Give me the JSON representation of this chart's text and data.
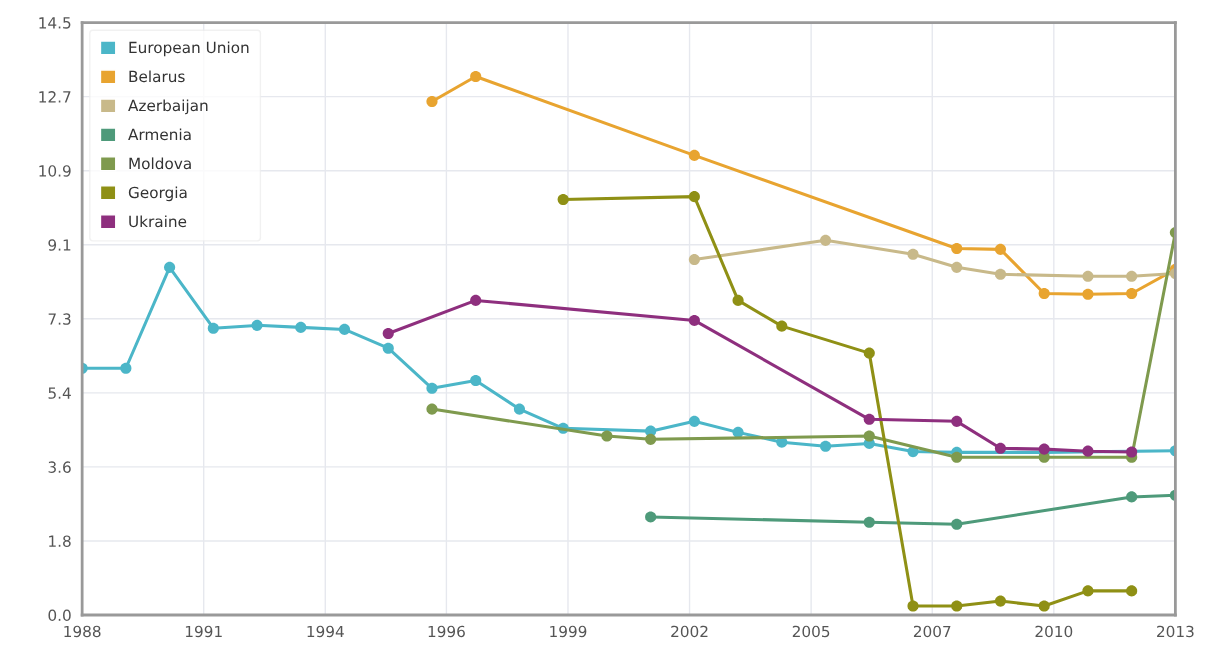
{
  "chart_data": {
    "type": "line",
    "marker": "circle",
    "line_style": "solid",
    "grid": true,
    "legend": "top left",
    "xlim": [
      1988,
      2013
    ],
    "xticks": [
      {
        "value": 1988,
        "label": "1988"
      },
      {
        "value": 1990.78,
        "label": "1991"
      },
      {
        "value": 1993.56,
        "label": "1994"
      },
      {
        "value": 1996.33,
        "label": "1996"
      },
      {
        "value": 1999.11,
        "label": "1999"
      },
      {
        "value": 2001.89,
        "label": "2002"
      },
      {
        "value": 2004.67,
        "label": "2005"
      },
      {
        "value": 2007.44,
        "label": "2007"
      },
      {
        "value": 2010.22,
        "label": "2010"
      },
      {
        "value": 2013,
        "label": "2013"
      }
    ],
    "ylim": [
      0,
      14.5
    ],
    "yticks": [
      {
        "value": 0,
        "label": "0.0"
      },
      {
        "value": 1.8125,
        "label": "1.8"
      },
      {
        "value": 3.625,
        "label": "3.6"
      },
      {
        "value": 5.4375,
        "label": "5.4"
      },
      {
        "value": 7.25,
        "label": "7.3"
      },
      {
        "value": 9.0625,
        "label": "9.1"
      },
      {
        "value": 10.875,
        "label": "10.9"
      },
      {
        "value": 12.6875,
        "label": "12.7"
      },
      {
        "value": 14.5,
        "label": "14.5"
      }
    ],
    "series": [
      {
        "name": "European Union",
        "color": "#4bb6c8",
        "x": [
          1988,
          1989,
          1990,
          1991,
          1992,
          1993,
          1994,
          1995,
          1996,
          1997,
          1998,
          1999,
          2000,
          2001,
          2002,
          2003,
          2004,
          2005,
          2006,
          2007,
          2008,
          2009,
          2010,
          2011,
          2012,
          2013
        ],
        "values": [
          6.04,
          6.04,
          8.51,
          7.02,
          7.09,
          7.04,
          6.99,
          6.53,
          5.55,
          5.74,
          5.04,
          4.57,
          null,
          4.5,
          4.74,
          4.47,
          4.23,
          4.13,
          4.2,
          4.0,
          3.98,
          null,
          3.98,
          null,
          null,
          4.02
        ]
      },
      {
        "name": "Belarus",
        "color": "#e8a430",
        "x": [
          1996,
          1997,
          2002,
          2008,
          2009,
          2010,
          2011,
          2012,
          2013
        ],
        "values": [
          12.57,
          13.18,
          11.25,
          8.97,
          8.95,
          7.87,
          7.85,
          7.87,
          8.46
        ]
      },
      {
        "name": "Azerbaijan",
        "color": "#c8b98a",
        "x": [
          2002,
          2005,
          2007,
          2008,
          2009,
          2011,
          2012,
          2013
        ],
        "values": [
          8.7,
          9.17,
          8.83,
          8.51,
          8.34,
          8.29,
          8.29,
          8.36
        ]
      },
      {
        "name": "Armenia",
        "color": "#4e9a7a",
        "x": [
          2001,
          2006,
          2008,
          2012,
          2013
        ],
        "values": [
          2.4,
          2.27,
          2.22,
          2.89,
          2.93
        ]
      },
      {
        "name": "Moldova",
        "color": "#7f9a4e",
        "x": [
          1996,
          2000,
          2001,
          2006,
          2008,
          2010,
          2012,
          2013
        ],
        "values": [
          5.04,
          4.38,
          4.3,
          4.38,
          3.86,
          3.86,
          3.86,
          9.36
        ]
      },
      {
        "name": "Georgia",
        "color": "#8f9015",
        "x": [
          1999,
          2002,
          2003,
          2004,
          2006,
          2007,
          2008,
          2009,
          2010,
          2011,
          2012
        ],
        "values": [
          10.17,
          10.24,
          7.7,
          7.07,
          6.41,
          0.22,
          0.22,
          0.34,
          0.22,
          0.59,
          0.59
        ]
      },
      {
        "name": "Ukraine",
        "color": "#8e2f7e",
        "x": [
          1995,
          1997,
          2002,
          2006,
          2008,
          2009,
          2010,
          2011,
          2012
        ],
        "values": [
          6.89,
          7.7,
          7.21,
          4.79,
          4.74,
          4.08,
          4.06,
          4.01,
          3.99
        ]
      }
    ]
  }
}
